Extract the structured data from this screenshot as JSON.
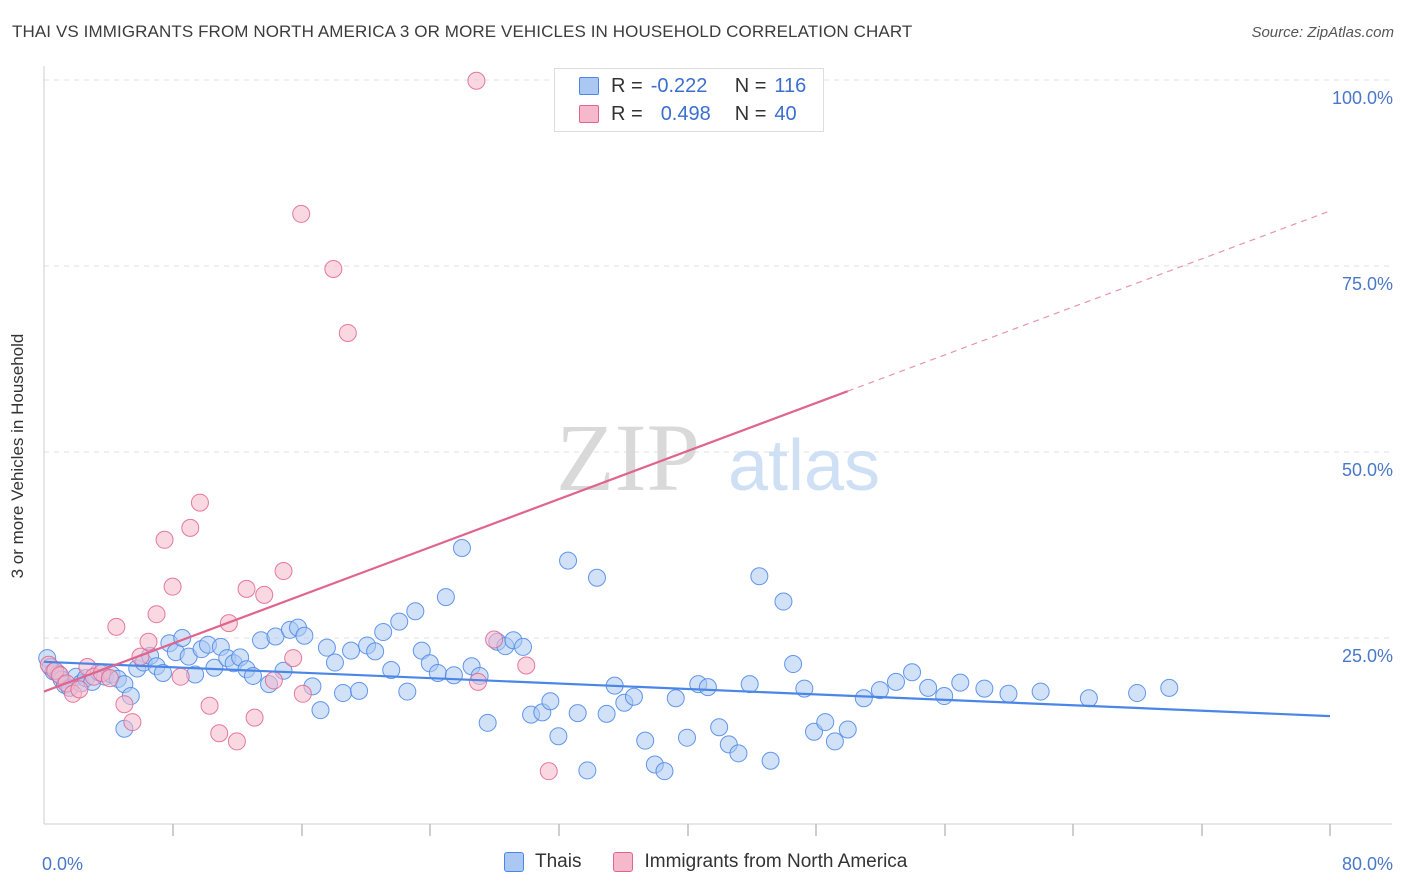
{
  "title": "THAI VS IMMIGRANTS FROM NORTH AMERICA 3 OR MORE VEHICLES IN HOUSEHOLD CORRELATION CHART",
  "source": "Source: ZipAtlas.com",
  "watermark": {
    "zip": "ZIP",
    "atlas": "atlas"
  },
  "legend": {
    "row1": {
      "r_label": "R =",
      "r_value": "-0.222",
      "n_label": "N =",
      "n_value": "116"
    },
    "row2": {
      "r_label": "R =",
      "r_value": "0.498",
      "n_label": "N =",
      "n_value": "40"
    }
  },
  "bottom_legend": [
    "Thais",
    "Immigrants from North America"
  ],
  "colors": {
    "blue": "#4a86e8",
    "blue_fill": "#aac8f2",
    "pink": "#e0648e",
    "pink_fill": "#f6b8cb",
    "tick_text": "#4a78c8"
  },
  "chart_data": {
    "type": "scatter",
    "title": "THAI VS IMMIGRANTS FROM NORTH AMERICA 3 OR MORE VEHICLES IN HOUSEHOLD CORRELATION CHART",
    "xlabel": "",
    "ylabel": "3 or more Vehicles in Household",
    "xlim": [
      0,
      80
    ],
    "ylim": [
      0,
      100
    ],
    "x_tick_labels": [
      "0.0%",
      "80.0%"
    ],
    "y_ticks": [
      25,
      50,
      75,
      100
    ],
    "y_tick_labels": [
      "25.0%",
      "50.0%",
      "75.0%",
      "100.0%"
    ],
    "grid": true,
    "series": [
      {
        "name": "Thais",
        "color": "#4a86e8",
        "R": -0.222,
        "N": 116,
        "trend": {
          "x": [
            0,
            80
          ],
          "y": [
            21.8,
            14.5
          ],
          "dashed_from": null
        },
        "points": [
          [
            0.2,
            22.3
          ],
          [
            0.4,
            21.1
          ],
          [
            0.6,
            20.5
          ],
          [
            0.9,
            20.2
          ],
          [
            1.1,
            19.4
          ],
          [
            1.3,
            18.7
          ],
          [
            1.6,
            18.3
          ],
          [
            2.0,
            19.8
          ],
          [
            2.3,
            18.9
          ],
          [
            2.6,
            19.6
          ],
          [
            3.0,
            19.1
          ],
          [
            3.4,
            20.4
          ],
          [
            3.8,
            19.8
          ],
          [
            4.2,
            20.1
          ],
          [
            4.6,
            19.5
          ],
          [
            5.0,
            18.8
          ],
          [
            5.4,
            17.2
          ],
          [
            5.8,
            20.9
          ],
          [
            6.2,
            21.7
          ],
          [
            6.6,
            22.6
          ],
          [
            7.0,
            21.2
          ],
          [
            7.4,
            20.3
          ],
          [
            7.8,
            24.3
          ],
          [
            8.2,
            23.1
          ],
          [
            8.6,
            25.0
          ],
          [
            9.0,
            22.5
          ],
          [
            9.4,
            20.1
          ],
          [
            9.8,
            23.5
          ],
          [
            10.2,
            24.1
          ],
          [
            10.6,
            21.0
          ],
          [
            11.0,
            23.8
          ],
          [
            11.4,
            22.3
          ],
          [
            11.8,
            21.6
          ],
          [
            12.2,
            22.4
          ],
          [
            12.6,
            20.8
          ],
          [
            13.0,
            19.9
          ],
          [
            13.5,
            24.7
          ],
          [
            14.0,
            18.8
          ],
          [
            14.4,
            25.2
          ],
          [
            14.9,
            20.6
          ],
          [
            15.3,
            26.1
          ],
          [
            15.8,
            26.4
          ],
          [
            16.2,
            25.3
          ],
          [
            16.7,
            18.5
          ],
          [
            17.2,
            15.3
          ],
          [
            17.6,
            23.7
          ],
          [
            18.1,
            21.7
          ],
          [
            18.6,
            17.6
          ],
          [
            19.1,
            23.3
          ],
          [
            19.6,
            17.9
          ],
          [
            20.1,
            24.0
          ],
          [
            20.6,
            23.2
          ],
          [
            21.1,
            25.8
          ],
          [
            21.6,
            20.7
          ],
          [
            22.1,
            27.2
          ],
          [
            22.6,
            17.8
          ],
          [
            23.1,
            28.6
          ],
          [
            23.5,
            23.3
          ],
          [
            24.0,
            21.6
          ],
          [
            24.5,
            20.3
          ],
          [
            25.0,
            30.5
          ],
          [
            25.5,
            20.0
          ],
          [
            26.0,
            37.1
          ],
          [
            26.6,
            21.2
          ],
          [
            27.1,
            19.9
          ],
          [
            27.6,
            13.6
          ],
          [
            28.2,
            24.5
          ],
          [
            28.7,
            23.9
          ],
          [
            29.2,
            24.7
          ],
          [
            29.8,
            23.8
          ],
          [
            30.3,
            14.7
          ],
          [
            31.0,
            15.0
          ],
          [
            31.5,
            16.5
          ],
          [
            32.0,
            11.8
          ],
          [
            32.6,
            35.4
          ],
          [
            33.2,
            14.9
          ],
          [
            33.8,
            7.2
          ],
          [
            34.4,
            33.1
          ],
          [
            35.0,
            14.8
          ],
          [
            35.5,
            18.6
          ],
          [
            36.1,
            16.3
          ],
          [
            36.7,
            17.1
          ],
          [
            37.4,
            11.2
          ],
          [
            38.0,
            8.0
          ],
          [
            38.6,
            7.1
          ],
          [
            39.3,
            16.9
          ],
          [
            40.0,
            11.6
          ],
          [
            40.7,
            18.8
          ],
          [
            41.3,
            18.4
          ],
          [
            42.0,
            13.0
          ],
          [
            42.6,
            10.7
          ],
          [
            43.2,
            9.5
          ],
          [
            43.9,
            18.8
          ],
          [
            44.5,
            33.3
          ],
          [
            45.2,
            8.5
          ],
          [
            46.0,
            29.9
          ],
          [
            46.6,
            21.5
          ],
          [
            47.3,
            18.2
          ],
          [
            47.9,
            12.4
          ],
          [
            48.6,
            13.7
          ],
          [
            49.2,
            11.1
          ],
          [
            50.0,
            12.7
          ],
          [
            51.0,
            16.9
          ],
          [
            52.0,
            18.0
          ],
          [
            53.0,
            19.1
          ],
          [
            54.0,
            20.4
          ],
          [
            55.0,
            18.3
          ],
          [
            56.0,
            17.2
          ],
          [
            57.0,
            19.0
          ],
          [
            58.5,
            18.2
          ],
          [
            60.0,
            17.5
          ],
          [
            62.0,
            17.8
          ],
          [
            65.0,
            16.9
          ],
          [
            68.0,
            17.6
          ],
          [
            70.0,
            18.3
          ],
          [
            5.0,
            12.8
          ]
        ]
      },
      {
        "name": "Immigrants from North America",
        "color": "#e0648e",
        "R": 0.498,
        "N": 40,
        "trend": {
          "x": [
            0,
            80
          ],
          "y": [
            17.8,
            82.4
          ],
          "solid_until_x": 50
        },
        "points": [
          [
            0.3,
            21.4
          ],
          [
            0.7,
            20.6
          ],
          [
            1.0,
            20.0
          ],
          [
            1.4,
            18.9
          ],
          [
            1.8,
            17.5
          ],
          [
            2.2,
            18.1
          ],
          [
            2.7,
            21.1
          ],
          [
            3.1,
            19.8
          ],
          [
            3.6,
            20.3
          ],
          [
            4.1,
            19.6
          ],
          [
            4.5,
            26.5
          ],
          [
            5.0,
            16.1
          ],
          [
            5.5,
            13.7
          ],
          [
            6.0,
            22.5
          ],
          [
            6.5,
            24.5
          ],
          [
            7.0,
            28.2
          ],
          [
            7.5,
            38.2
          ],
          [
            8.0,
            31.9
          ],
          [
            8.5,
            19.8
          ],
          [
            9.1,
            39.8
          ],
          [
            9.7,
            43.2
          ],
          [
            10.3,
            15.9
          ],
          [
            10.9,
            12.2
          ],
          [
            11.5,
            27.0
          ],
          [
            12.0,
            11.1
          ],
          [
            12.6,
            31.6
          ],
          [
            13.1,
            14.3
          ],
          [
            13.7,
            30.8
          ],
          [
            14.3,
            19.3
          ],
          [
            14.9,
            34.0
          ],
          [
            15.5,
            22.3
          ],
          [
            16.1,
            17.5
          ],
          [
            16.0,
            82.0
          ],
          [
            18.0,
            74.6
          ],
          [
            18.9,
            66.0
          ],
          [
            26.9,
            99.9
          ],
          [
            28.0,
            24.8
          ],
          [
            30.0,
            21.3
          ],
          [
            31.4,
            7.1
          ],
          [
            27.0,
            19.1
          ]
        ]
      }
    ]
  }
}
